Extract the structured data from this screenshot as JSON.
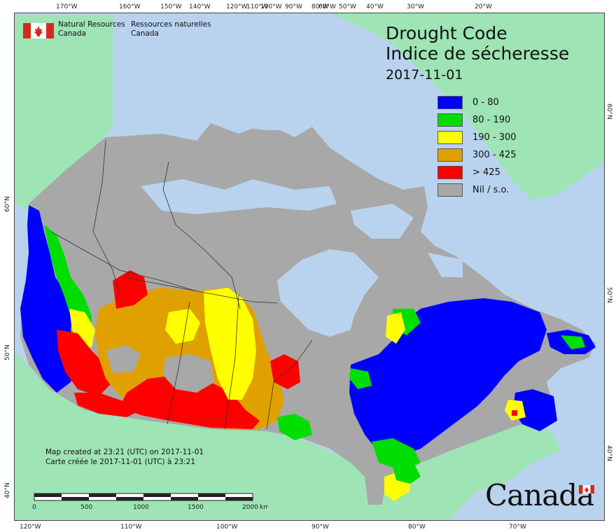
{
  "organization": {
    "name_en_line1": "Natural Resources",
    "name_en_line2": "Canada",
    "name_fr_line1": "Ressources naturelles",
    "name_fr_line2": "Canada"
  },
  "title": {
    "en": "Drought Code",
    "fr": "Indice de sécheresse",
    "date": "2017-11-01"
  },
  "legend": [
    {
      "label": "0 - 80",
      "color": "#0000ff"
    },
    {
      "label": "80 - 190",
      "color": "#00dd00"
    },
    {
      "label": "190 - 300",
      "color": "#ffff00"
    },
    {
      "label": "300 - 425",
      "color": "#e0a000"
    },
    {
      "label": "> 425",
      "color": "#ff0000"
    },
    {
      "label": "Nil / s.o.",
      "color": "#a8a8a8"
    }
  ],
  "colors": {
    "ocean": "#b9d3ee",
    "foreign_land": "#9ee4b4",
    "nodata_land": "#a8a8a8",
    "boundary": "#333333"
  },
  "credits": {
    "line1": "Map created at 23:21 (UTC) on 2017-11-01",
    "line2": "Carte créée le 2017-11-01 (UTC) à 23:21"
  },
  "scale": {
    "labels": [
      "0",
      "500",
      "1000",
      "1500",
      "2000"
    ],
    "unit": "km"
  },
  "longitude_top": [
    "170°W",
    "160°W",
    "150°W",
    "140°W",
    "120°W",
    "110°W",
    "100°W",
    "90°W",
    "80°W",
    "60°W",
    "50°W",
    "40°W",
    "30°W",
    "20°W"
  ],
  "longitude_bottom": [
    "120°W",
    "110°W",
    "100°W",
    "90°W",
    "80°W",
    "70°W"
  ],
  "latitude_left": [
    "60°N",
    "50°N",
    "40°N"
  ],
  "latitude_right": [
    "60°N",
    "50°N",
    "40°N"
  ],
  "wordmark": "Canada"
}
